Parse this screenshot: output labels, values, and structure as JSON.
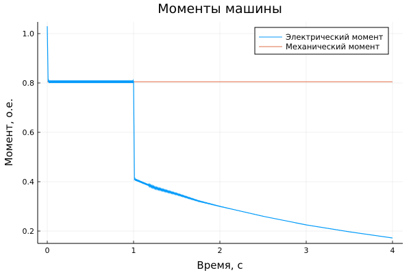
{
  "chart_data": {
    "type": "line",
    "title": "Моменты машины",
    "xlabel": "Время, с",
    "ylabel": "Момент, о.е.",
    "xlim": [
      -0.1,
      4.12
    ],
    "ylim": [
      0.15,
      1.055
    ],
    "xticks": [
      0,
      1,
      2,
      3,
      4
    ],
    "xtick_labels": [
      "0",
      "1",
      "2",
      "3",
      "4"
    ],
    "yticks": [
      0.2,
      0.4,
      0.6,
      0.8,
      1.0
    ],
    "ytick_labels": [
      "0.2",
      "0.4",
      "0.6",
      "0.8",
      "1.0"
    ],
    "grid": true,
    "legend_position": "top-right",
    "series": [
      {
        "name": "Электрический момент",
        "color": "#009AFA",
        "x": [
          0,
          0.01,
          0.5,
          1.0,
          1.01,
          1.25,
          1.5,
          1.75,
          2.0,
          2.5,
          3.0,
          3.5,
          4.0
        ],
        "y": [
          1.03,
          0.805,
          0.805,
          0.805,
          0.41,
          0.375,
          0.35,
          0.322,
          0.3,
          0.26,
          0.225,
          0.197,
          0.172
        ]
      },
      {
        "name": "Механический момент",
        "color": "#E26F46",
        "x": [
          0,
          4
        ],
        "y": [
          0.805,
          0.805
        ]
      }
    ]
  }
}
